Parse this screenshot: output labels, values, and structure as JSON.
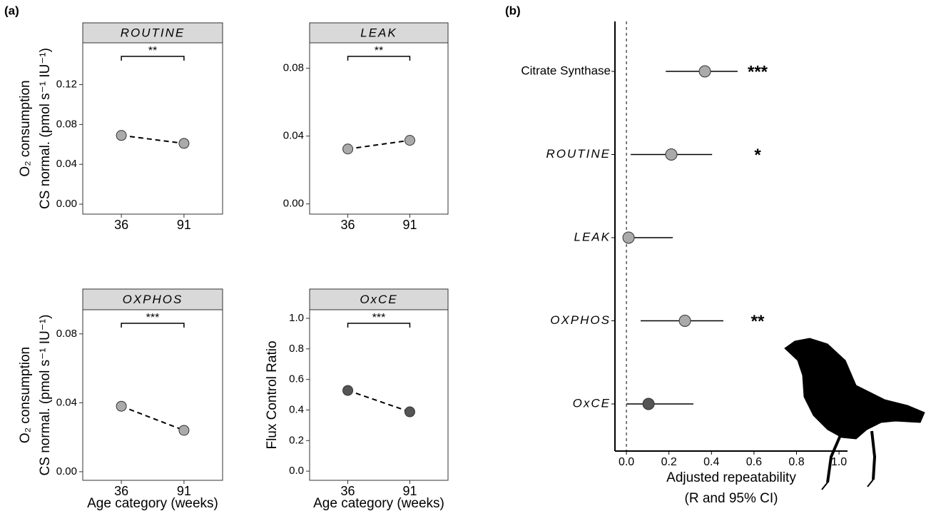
{
  "panel_labels": [
    "(a)",
    "(b)"
  ],
  "chart_data": [
    {
      "type": "line",
      "title": "ROUTINE",
      "categories": [
        "36",
        "91"
      ],
      "values": [
        0.069,
        0.061
      ],
      "color": "#aaaaaa",
      "ylim": [
        -0.01,
        0.162
      ],
      "yticks": [
        {
          "value": 0,
          "label": "0.00"
        },
        {
          "value": 0.04,
          "label": "0.04"
        },
        {
          "value": 0.08,
          "label": "0.08"
        },
        {
          "value": 0.12,
          "label": "0.12"
        }
      ],
      "ylabel": [
        "O₂ consumption",
        "CS normal. (pmol s⁻¹ IU⁻¹)"
      ],
      "significance": "**"
    },
    {
      "type": "line",
      "title": "LEAK",
      "categories": [
        "36",
        "91"
      ],
      "values": [
        0.0324,
        0.0375
      ],
      "color": "#aaaaaa",
      "ylim": [
        -0.006,
        0.095
      ],
      "yticks": [
        {
          "value": 0,
          "label": "0.00"
        },
        {
          "value": 0.04,
          "label": "0.04"
        },
        {
          "value": 0.08,
          "label": "0.08"
        }
      ],
      "significance": "**"
    },
    {
      "type": "line",
      "title": "OXPHOS",
      "categories": [
        "36",
        "91"
      ],
      "values": [
        0.038,
        0.024
      ],
      "color": "#aaaaaa",
      "ylim": [
        -0.005,
        0.094
      ],
      "yticks": [
        {
          "value": 0,
          "label": "0.00"
        },
        {
          "value": 0.04,
          "label": "0.04"
        },
        {
          "value": 0.08,
          "label": "0.08"
        }
      ],
      "ylabel": [
        "O₂ consumption",
        "CS normal. (pmol s⁻¹ IU⁻¹)"
      ],
      "xlabel": "Age category (weeks)",
      "significance": "***"
    },
    {
      "type": "line",
      "title": "OxCE",
      "categories": [
        "36",
        "91"
      ],
      "values": [
        0.528,
        0.388
      ],
      "color": "#555555",
      "ylim": [
        -0.06,
        1.056
      ],
      "yticks": [
        {
          "value": 0,
          "label": "0.0"
        },
        {
          "value": 0.2,
          "label": "0.2"
        },
        {
          "value": 0.4,
          "label": "0.4"
        },
        {
          "value": 0.6,
          "label": "0.6"
        },
        {
          "value": 0.8,
          "label": "0.8"
        },
        {
          "value": 1,
          "label": "1.0"
        }
      ],
      "ylabel": [
        "Flux Control Ratio"
      ],
      "xlabel": "Age category (weeks)",
      "significance": "***"
    },
    {
      "type": "forest",
      "categories": [
        "Citrate Synthase",
        "ROUTINE",
        "LEAK",
        "OXPHOS",
        "OxCE"
      ],
      "label_italic": [
        false,
        true,
        true,
        true,
        true
      ],
      "values": [
        0.369,
        0.211,
        0.01,
        0.275,
        0.104
      ],
      "ci_low": [
        0.185,
        0.02,
        0,
        0.067,
        0
      ],
      "ci_high": [
        0.523,
        0.403,
        0.218,
        0.456,
        0.315
      ],
      "colors": [
        "#aaaaaa",
        "#aaaaaa",
        "#aaaaaa",
        "#aaaaaa",
        "#555555"
      ],
      "significance": [
        "***",
        "*",
        null,
        "**",
        null
      ],
      "xlim": [
        -0.054,
        1.04
      ],
      "xticks": [
        {
          "value": 0,
          "label": "0.0"
        },
        {
          "value": 0.2,
          "label": "0.2"
        },
        {
          "value": 0.4,
          "label": "0.4"
        },
        {
          "value": 0.6,
          "label": "0.6"
        },
        {
          "value": 0.8,
          "label": "0.8"
        },
        {
          "value": 1,
          "label": "1.0"
        }
      ],
      "vline": 0,
      "xlabel": [
        "Adjusted repeatability",
        "(R and 95% CI)"
      ]
    }
  ]
}
